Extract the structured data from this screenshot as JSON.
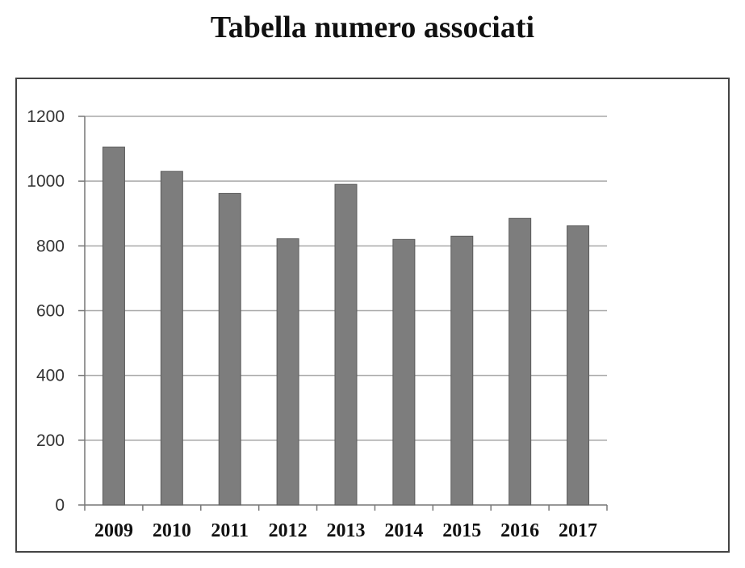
{
  "title": "Tabella numero associati",
  "chart_data": {
    "type": "bar",
    "title": "Tabella numero associati",
    "xlabel": "",
    "ylabel": "",
    "categories": [
      "2009",
      "2010",
      "2011",
      "2012",
      "2013",
      "2014",
      "2015",
      "2016",
      "2017"
    ],
    "values": [
      1105,
      1030,
      962,
      822,
      990,
      820,
      830,
      885,
      862
    ],
    "ylim": [
      0,
      1200
    ],
    "yticks": [
      0,
      200,
      400,
      600,
      800,
      1000,
      1200
    ],
    "grid": true,
    "bar_color": "#7d7d7d"
  }
}
